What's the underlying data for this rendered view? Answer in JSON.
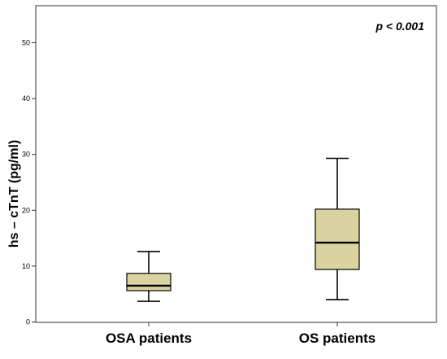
{
  "chart_data": {
    "type": "box",
    "ylabel": "hs – cTnT (pg/ml)",
    "ylim": [
      0,
      55
    ],
    "yticks": [
      "0",
      "10",
      "20",
      "30",
      "40",
      "50"
    ],
    "categories": [
      "OSA patients",
      "OS patients"
    ],
    "boxes": [
      {
        "category": "OSA patients",
        "min": 3.7,
        "q1": 5.6,
        "median": 6.5,
        "q3": 8.7,
        "max": 12.6
      },
      {
        "category": "OS patients",
        "min": 4.0,
        "q1": 9.4,
        "median": 14.2,
        "q3": 20.2,
        "max": 29.3
      }
    ],
    "annotation": "p < 0.001",
    "colors": {
      "box_fill": "#d9d3a0",
      "stroke": "#000000",
      "frame": "#333333"
    },
    "grid": false
  }
}
